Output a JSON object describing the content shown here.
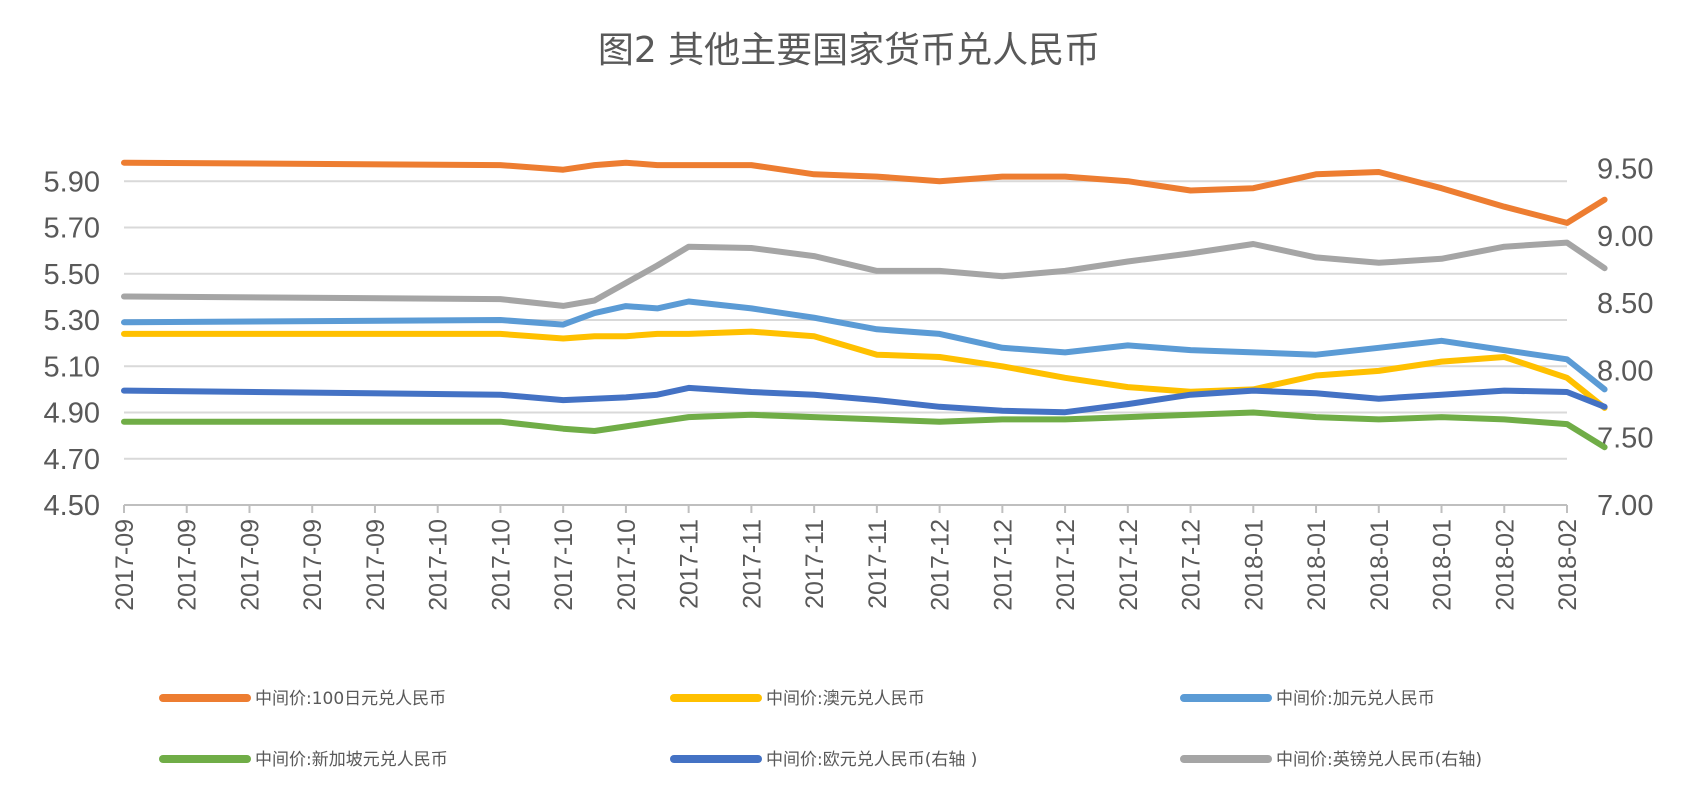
{
  "chart_data": {
    "type": "line",
    "title": "图2 其他主要国家货币兑人民币",
    "y_left": {
      "lim": [
        4.5,
        6.1
      ],
      "ticks": [
        "5.90",
        "5.70",
        "5.50",
        "5.30",
        "5.10",
        "4.90",
        "4.70",
        "4.50"
      ]
    },
    "y_right": {
      "lim": [
        7.0,
        9.75
      ],
      "ticks": [
        "9.50",
        "9.00",
        "8.50",
        "8.00",
        "7.50",
        "7.00"
      ]
    },
    "x_ticks": [
      "2017-09",
      "2017-09",
      "2017-09",
      "2017-09",
      "2017-09",
      "2017-10",
      "2017-10",
      "2017-10",
      "2017-10",
      "2017-11",
      "2017-11",
      "2017-11",
      "2017-11",
      "2017-12",
      "2017-12",
      "2017-12",
      "2017-12",
      "2017-12",
      "2018-01",
      "2018-01",
      "2018-01",
      "2018-01",
      "2018-02",
      "2018-02"
    ],
    "grid": true,
    "legend_position": "bottom",
    "series": [
      {
        "name": "中间价:100日元兑人民币",
        "axis": "left",
        "color": "#ED7D31",
        "x": [
          0,
          6,
          7,
          7.5,
          8,
          8.5,
          9,
          10,
          11,
          12,
          13,
          14,
          15,
          16,
          17,
          18,
          19,
          20,
          21,
          22,
          23,
          23.6
        ],
        "values": [
          5.98,
          5.97,
          5.95,
          5.97,
          5.98,
          5.97,
          5.97,
          5.97,
          5.93,
          5.92,
          5.9,
          5.92,
          5.92,
          5.9,
          5.86,
          5.87,
          5.93,
          5.94,
          5.87,
          5.79,
          5.72,
          5.82
        ]
      },
      {
        "name": "中间价:澳元兑人民币",
        "axis": "left",
        "color": "#FFC000",
        "x": [
          0,
          6,
          7,
          7.5,
          8,
          8.5,
          9,
          10,
          11,
          12,
          13,
          14,
          15,
          16,
          17,
          18,
          19,
          20,
          21,
          22,
          23,
          23.6
        ],
        "values": [
          5.24,
          5.24,
          5.22,
          5.23,
          5.23,
          5.24,
          5.24,
          5.25,
          5.23,
          5.15,
          5.14,
          5.1,
          5.05,
          5.01,
          4.99,
          5.0,
          5.06,
          5.08,
          5.12,
          5.14,
          5.05,
          4.92
        ]
      },
      {
        "name": "中间价:加元兑人民币",
        "axis": "left",
        "color": "#5B9BD5",
        "x": [
          0,
          6,
          7,
          7.5,
          8,
          8.5,
          9,
          10,
          11,
          12,
          13,
          14,
          15,
          16,
          17,
          18,
          19,
          20,
          21,
          22,
          23,
          23.6
        ],
        "values": [
          5.29,
          5.3,
          5.28,
          5.33,
          5.36,
          5.35,
          5.38,
          5.35,
          5.31,
          5.26,
          5.24,
          5.18,
          5.16,
          5.19,
          5.17,
          5.16,
          5.15,
          5.18,
          5.21,
          5.17,
          5.13,
          5.0
        ]
      },
      {
        "name": "中间价:新加坡元兑人民币",
        "axis": "left",
        "color": "#70AD47",
        "x": [
          0,
          6,
          7,
          7.5,
          8,
          8.5,
          9,
          10,
          11,
          12,
          13,
          14,
          15,
          16,
          17,
          18,
          19,
          20,
          21,
          22,
          23,
          23.6
        ],
        "values": [
          4.86,
          4.86,
          4.83,
          4.82,
          4.84,
          4.86,
          4.88,
          4.89,
          4.88,
          4.87,
          4.86,
          4.87,
          4.87,
          4.88,
          4.89,
          4.9,
          4.88,
          4.87,
          4.88,
          4.87,
          4.85,
          4.75
        ]
      },
      {
        "name": "中间价:欧元兑人民币(右轴 )",
        "axis": "right",
        "color": "#4472C4",
        "x": [
          0,
          6,
          7,
          7.5,
          8,
          8.5,
          9,
          10,
          11,
          12,
          13,
          14,
          15,
          16,
          17,
          18,
          19,
          20,
          21,
          22,
          23,
          23.6
        ],
        "values": [
          7.85,
          7.82,
          7.78,
          7.79,
          7.8,
          7.82,
          7.87,
          7.84,
          7.82,
          7.78,
          7.73,
          7.7,
          7.69,
          7.75,
          7.82,
          7.85,
          7.83,
          7.79,
          7.82,
          7.85,
          7.84,
          7.73
        ]
      },
      {
        "name": "中间价:英镑兑人民币(右轴)",
        "axis": "right",
        "color": "#A5A5A5",
        "x": [
          0,
          6,
          7,
          7.5,
          8,
          8.5,
          9,
          10,
          11,
          12,
          13,
          14,
          15,
          16,
          17,
          18,
          19,
          20,
          21,
          22,
          23,
          23.6
        ],
        "values": [
          8.55,
          8.53,
          8.48,
          8.52,
          8.65,
          8.78,
          8.92,
          8.91,
          8.85,
          8.74,
          8.74,
          8.7,
          8.74,
          8.81,
          8.87,
          8.94,
          8.84,
          8.8,
          8.83,
          8.92,
          8.95,
          8.76
        ]
      }
    ]
  }
}
